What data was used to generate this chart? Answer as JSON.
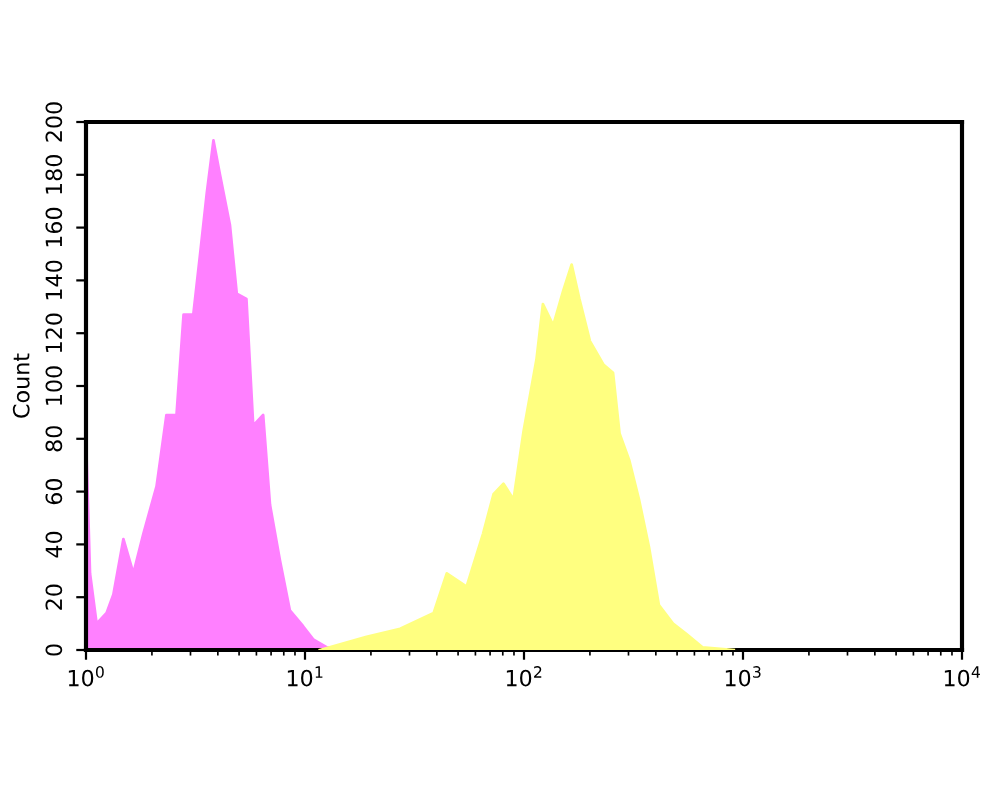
{
  "chart_data": {
    "type": "area",
    "ylabel": "Count",
    "log": "x",
    "xlim": [
      1,
      10000
    ],
    "ylim": [
      0,
      200
    ],
    "xticks": [
      {
        "value": 1,
        "label": "10$^{0}$"
      },
      {
        "value": 10,
        "label": "10$^{1}$"
      },
      {
        "value": 100,
        "label": "10$^{2}$"
      },
      {
        "value": 1000,
        "label": "10$^{3}$"
      },
      {
        "value": 10000,
        "label": "10$^{4}$"
      }
    ],
    "yticks": [
      0,
      20,
      40,
      60,
      80,
      100,
      120,
      140,
      160,
      180,
      200
    ],
    "grid": false,
    "series": [
      {
        "color": "#ff80ff",
        "x": [
          1.006,
          1.043,
          1.118,
          1.242,
          1.334,
          1.482,
          1.646,
          1.828,
          2.1,
          2.33,
          2.59,
          2.79,
          3.09,
          3.32,
          3.56,
          3.82,
          4.09,
          4.54,
          4.88,
          5.4,
          5.8,
          6.44,
          6.92,
          7.68,
          8.53,
          9.8,
          10.9,
          12.6,
          15.4
        ],
        "values": [
          73,
          29,
          10,
          14,
          21,
          42,
          29,
          44,
          62,
          89,
          89,
          127,
          127,
          150,
          173,
          193,
          180,
          161,
          135,
          133,
          85,
          89,
          55,
          34,
          15,
          9,
          4,
          1,
          0
        ]
      },
      {
        "color": "#ffff80",
        "x": [
          11.7,
          19.1,
          27.2,
          38.7,
          44.4,
          54.7,
          65.0,
          72.6,
          80.6,
          89.6,
          99.6,
          114,
          122,
          136,
          151,
          165,
          179,
          200,
          231,
          255,
          273,
          302,
          335,
          372,
          413,
          479,
          552,
          653,
          907
        ],
        "values": [
          0,
          5,
          8,
          14,
          29,
          24,
          44,
          59,
          63,
          57,
          83,
          110,
          131,
          123,
          136,
          146,
          133,
          117,
          108,
          105,
          82,
          72,
          57,
          39,
          17,
          10,
          6,
          1,
          0
        ]
      }
    ]
  }
}
